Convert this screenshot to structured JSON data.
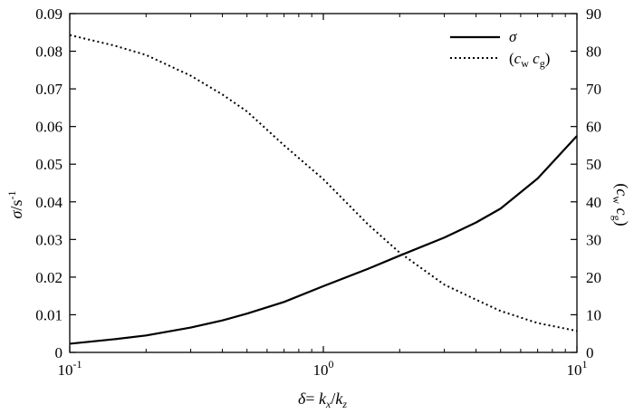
{
  "chart_data": {
    "type": "line",
    "x_scale": "log",
    "xlim": [
      0.1,
      10
    ],
    "ylim_left": [
      0,
      0.09
    ],
    "ylim_right": [
      0,
      90
    ],
    "grid": false,
    "legend_placement": "top-right",
    "x_ticks": [
      0.1,
      1,
      10
    ],
    "x_tick_bases": [
      "10",
      "10",
      "10"
    ],
    "x_tick_exps": [
      "-1",
      "0",
      "1"
    ],
    "y_left_ticks": [
      0,
      0.01,
      0.02,
      0.03,
      0.04,
      0.05,
      0.06,
      0.07,
      0.08,
      0.09
    ],
    "y_left_tick_labels": [
      "0",
      "0.01",
      "0.02",
      "0.03",
      "0.04",
      "0.05",
      "0.06",
      "0.07",
      "0.08",
      "0.09"
    ],
    "y_right_ticks": [
      0,
      10,
      20,
      30,
      40,
      50,
      60,
      70,
      80,
      90
    ],
    "y_right_tick_labels": [
      "0",
      "10",
      "20",
      "30",
      "40",
      "50",
      "60",
      "70",
      "80",
      "90"
    ],
    "xlabel": {
      "part1": "δ",
      "part2": "= ",
      "part3": "k",
      "part4": "x",
      "part5": "/",
      "part6": "k",
      "part7": "z"
    },
    "ylabel_left": {
      "symbol": "σ",
      "unit": "/s",
      "exp": "-1"
    },
    "ylabel_right": {
      "open": "(",
      "c1": "c",
      "s1": "w",
      "c2": " c",
      "s2": "g",
      "close": ")"
    },
    "series": [
      {
        "name": "σ",
        "axis": "left",
        "style": "solid",
        "x": [
          0.1,
          0.15,
          0.2,
          0.3,
          0.4,
          0.5,
          0.7,
          1.0,
          1.5,
          2.0,
          3.0,
          4.0,
          5.0,
          7.0,
          10.0
        ],
        "y": [
          0.0023,
          0.0035,
          0.0045,
          0.0066,
          0.0085,
          0.0103,
          0.0134,
          0.0176,
          0.0222,
          0.0257,
          0.0305,
          0.0345,
          0.0382,
          0.0462,
          0.0575
        ]
      },
      {
        "name": "(cw cg)",
        "name_parts": {
          "open": "(",
          "c1": "c",
          "s1": "w",
          "c2": " c",
          "s2": "g",
          "close": ")"
        },
        "axis": "right",
        "style": "dotted",
        "x": [
          0.1,
          0.15,
          0.2,
          0.3,
          0.4,
          0.5,
          0.7,
          1.0,
          1.5,
          2.0,
          3.0,
          4.0,
          5.0,
          7.0,
          10.0
        ],
        "y": [
          84.3,
          81.5,
          79.0,
          73.5,
          68.5,
          64.0,
          55.0,
          46.0,
          34.0,
          26.5,
          18.0,
          14.0,
          11.0,
          7.8,
          5.7
        ]
      }
    ]
  }
}
